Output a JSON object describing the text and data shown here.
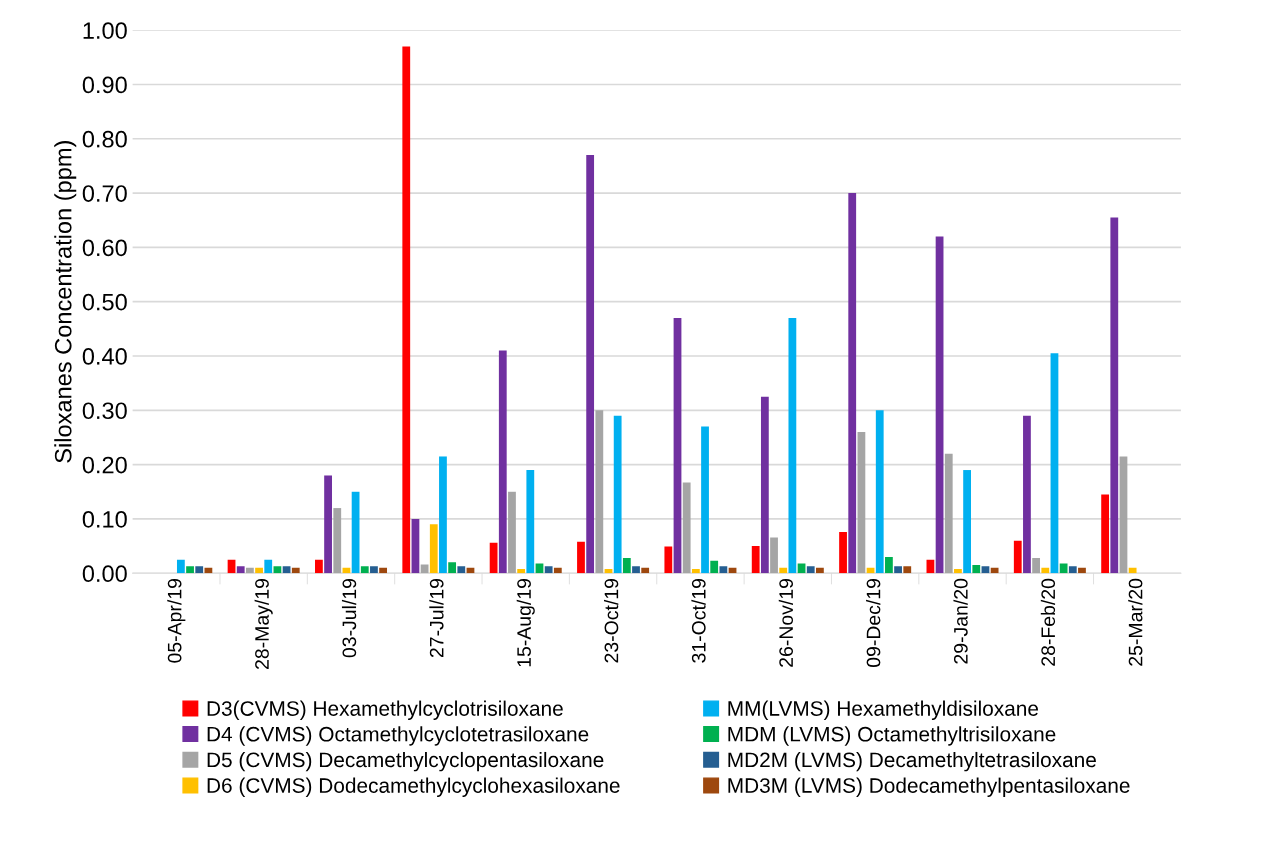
{
  "chart_data": {
    "type": "bar",
    "ylabel": "Siloxanes Concentration (ppm)",
    "categories": [
      "05-Apr/19",
      "28-May/19",
      "03-Jul/19",
      "27-Jul/19",
      "15-Aug/19",
      "23-Oct/19",
      "31-Oct/19",
      "26-Nov/19",
      "09-Dec/19",
      "29-Jan/20",
      "28-Feb/20",
      "25-Mar/20"
    ],
    "series": [
      {
        "name": "D3(CVMS) Hexamethylcyclotrisiloxane",
        "color": "#ff0000",
        "values": [
          0,
          0.025,
          0.025,
          0.97,
          0.056,
          0.058,
          0.049,
          0.05,
          0.076,
          0.025,
          0.06,
          0.145
        ]
      },
      {
        "name": "D4 (CVMS) Octamethylcyclotetrasiloxane",
        "color": "#7030a0",
        "values": [
          0,
          0.013,
          0.18,
          0.1,
          0.41,
          0.77,
          0.47,
          0.325,
          0.7,
          0.62,
          0.29,
          0.655
        ]
      },
      {
        "name": "D5 (CVMS) Decamethylcyclopentasiloxane",
        "color": "#a5a5a5",
        "values": [
          0,
          0.01,
          0.12,
          0.016,
          0.15,
          0.3,
          0.167,
          0.066,
          0.26,
          0.22,
          0.028,
          0.215
        ]
      },
      {
        "name": "D6 (CVMS) Dodecamethylcyclohexasiloxane",
        "color": "#ffc000",
        "values": [
          0,
          0.01,
          0.01,
          0.09,
          0.008,
          0.008,
          0.008,
          0.01,
          0.01,
          0.008,
          0.01,
          0.01
        ]
      },
      {
        "name": "MM(LVMS) Hexamethyldisiloxane",
        "color": "#00b0f0",
        "values": [
          0.025,
          0.025,
          0.15,
          0.215,
          0.19,
          0.29,
          0.27,
          0.47,
          0.3,
          0.19,
          0.405,
          null
        ]
      },
      {
        "name": "MDM (LVMS) Octamethyltrisiloxane",
        "color": "#00b050",
        "values": [
          0.013,
          0.013,
          0.013,
          0.02,
          0.018,
          0.028,
          0.023,
          0.018,
          0.03,
          0.015,
          0.018,
          null
        ]
      },
      {
        "name": "MD2M (LVMS) Decamethyltetrasiloxane",
        "color": "#255e91",
        "values": [
          0.013,
          0.013,
          0.013,
          0.013,
          0.013,
          0.013,
          0.013,
          0.013,
          0.013,
          0.013,
          0.013,
          null
        ]
      },
      {
        "name": "MD3M (LVMS) Dodecamethylpentasiloxane",
        "color": "#9e480e",
        "values": [
          0.01,
          0.01,
          0.01,
          0.01,
          0.01,
          0.01,
          0.01,
          0.01,
          0.013,
          0.01,
          0.01,
          null
        ]
      }
    ],
    "ylim": [
      0,
      1.0
    ],
    "yticks": [
      {
        "value": 0,
        "label": "0.00"
      },
      {
        "value": 0.1,
        "label": "0.10"
      },
      {
        "value": 0.2,
        "label": "0.20"
      },
      {
        "value": 0.3,
        "label": "0.30"
      },
      {
        "value": 0.4,
        "label": "0.40"
      },
      {
        "value": 0.5,
        "label": "0.50"
      },
      {
        "value": 0.6,
        "label": "0.60"
      },
      {
        "value": 0.7,
        "label": "0.70"
      },
      {
        "value": 0.8,
        "label": "0.80"
      },
      {
        "value": 0.9,
        "label": "0.90"
      },
      {
        "value": 1.0,
        "label": "1.00"
      }
    ],
    "grid": "y",
    "legend": "bottom"
  }
}
